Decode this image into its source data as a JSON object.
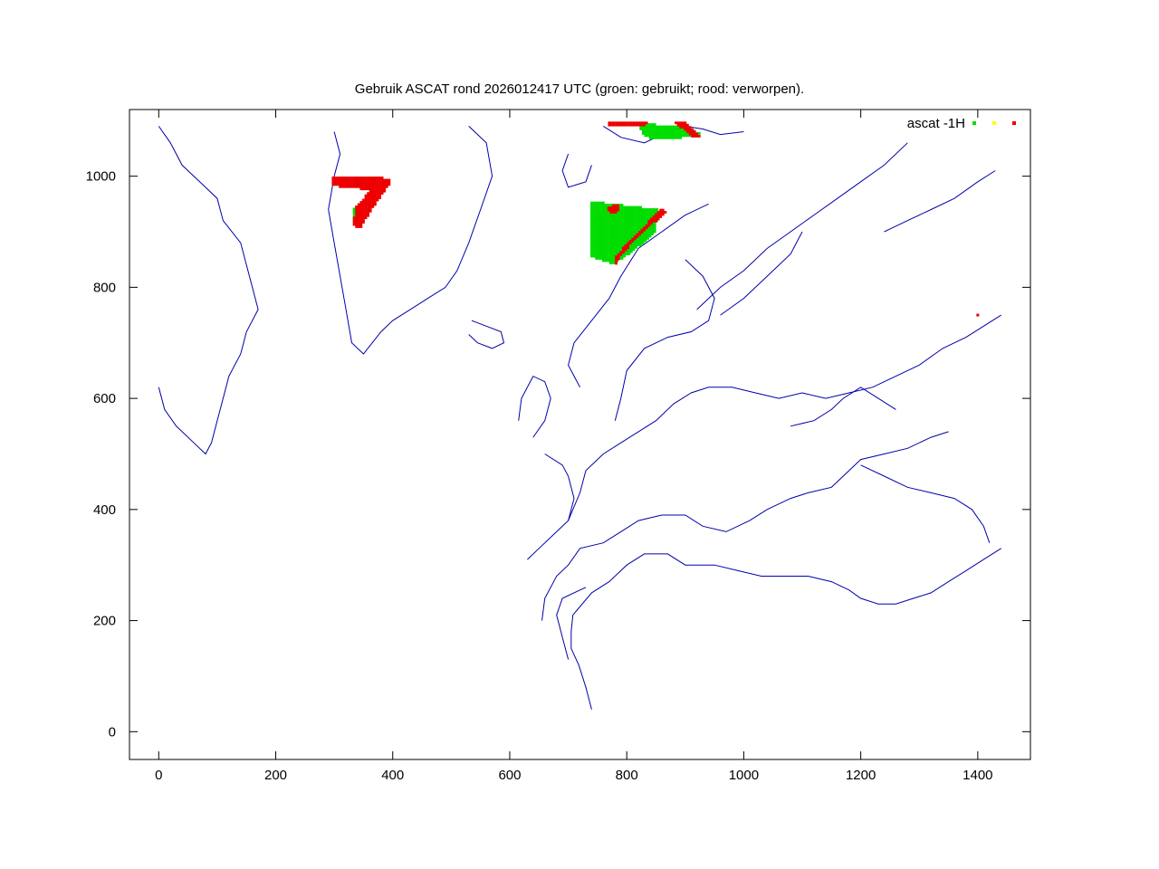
{
  "chart_data": {
    "type": "scatter",
    "title": "Gebruik ASCAT rond 2026012417 UTC (groen: gebruikt; rood: verworpen).",
    "xlabel": "",
    "ylabel": "",
    "xlim": [
      -50,
      1490
    ],
    "ylim": [
      -50,
      1120
    ],
    "x_ticks": [
      0,
      200,
      400,
      600,
      800,
      1000,
      1200,
      1400
    ],
    "y_ticks": [
      0,
      200,
      400,
      600,
      800,
      1000
    ],
    "x_tick_labels": [
      "0",
      "200",
      "400",
      "600",
      "800",
      "1000",
      "1200",
      "1400"
    ],
    "y_tick_labels": [
      "0",
      "200",
      "400",
      "600",
      "800",
      "1000"
    ],
    "grid": false,
    "legend": {
      "position": "top-right",
      "label": "ascat -1H"
    },
    "colors": {
      "coastline": "#0000aa",
      "used": "#00dd00",
      "flagged": "#ffff00",
      "rejected": "#ee0000",
      "axis": "#000000"
    },
    "series": [
      {
        "role": "coastline",
        "polylines": [
          [
            [
              740,
              40
            ],
            [
              730,
              80
            ],
            [
              718,
              120
            ],
            [
              705,
              150
            ],
            [
              705,
              180
            ],
            [
              708,
              210
            ],
            [
              740,
              250
            ],
            [
              770,
              270
            ],
            [
              800,
              300
            ],
            [
              830,
              320
            ],
            [
              870,
              320
            ],
            [
              900,
              300
            ],
            [
              950,
              300
            ],
            [
              990,
              290
            ],
            [
              1030,
              280
            ],
            [
              1080,
              280
            ],
            [
              1110,
              280
            ],
            [
              1150,
              270
            ],
            [
              1180,
              255
            ],
            [
              1200,
              240
            ],
            [
              1230,
              230
            ],
            [
              1260,
              230
            ],
            [
              1290,
              240
            ],
            [
              1320,
              250
            ],
            [
              1350,
              270
            ],
            [
              1380,
              290
            ],
            [
              1410,
              310
            ],
            [
              1440,
              330
            ]
          ],
          [
            [
              700,
              130
            ],
            [
              690,
              170
            ],
            [
              680,
              210
            ],
            [
              690,
              240
            ],
            [
              730,
              260
            ]
          ],
          [
            [
              655,
              200
            ],
            [
              660,
              240
            ],
            [
              680,
              280
            ],
            [
              700,
              300
            ],
            [
              720,
              330
            ],
            [
              760,
              340
            ],
            [
              790,
              360
            ],
            [
              820,
              380
            ],
            [
              860,
              390
            ],
            [
              900,
              390
            ],
            [
              930,
              370
            ],
            [
              970,
              360
            ],
            [
              1010,
              380
            ],
            [
              1040,
              400
            ],
            [
              1080,
              420
            ],
            [
              1110,
              430
            ],
            [
              1150,
              440
            ],
            [
              1180,
              470
            ],
            [
              1200,
              490
            ],
            [
              1240,
              500
            ],
            [
              1280,
              510
            ],
            [
              1320,
              530
            ],
            [
              1350,
              540
            ]
          ],
          [
            [
              700,
              380
            ],
            [
              720,
              430
            ],
            [
              730,
              470
            ],
            [
              760,
              500
            ],
            [
              790,
              520
            ],
            [
              820,
              540
            ],
            [
              850,
              560
            ],
            [
              880,
              590
            ],
            [
              910,
              610
            ],
            [
              940,
              620
            ],
            [
              980,
              620
            ],
            [
              1020,
              610
            ],
            [
              1060,
              600
            ],
            [
              1100,
              610
            ],
            [
              1140,
              600
            ],
            [
              1180,
              610
            ],
            [
              1220,
              620
            ],
            [
              1260,
              640
            ],
            [
              1300,
              660
            ],
            [
              1340,
              690
            ],
            [
              1380,
              710
            ],
            [
              1410,
              730
            ],
            [
              1440,
              750
            ]
          ],
          [
            [
              720,
              620
            ],
            [
              700,
              660
            ],
            [
              710,
              700
            ],
            [
              740,
              740
            ],
            [
              770,
              780
            ],
            [
              790,
              820
            ],
            [
              820,
              870
            ],
            [
              860,
              900
            ],
            [
              900,
              930
            ],
            [
              940,
              950
            ]
          ],
          [
            [
              780,
              560
            ],
            [
              790,
              600
            ],
            [
              800,
              650
            ],
            [
              830,
              690
            ],
            [
              870,
              710
            ],
            [
              910,
              720
            ],
            [
              940,
              740
            ],
            [
              950,
              780
            ],
            [
              930,
              820
            ],
            [
              900,
              850
            ]
          ],
          [
            [
              920,
              760
            ],
            [
              960,
              800
            ],
            [
              1000,
              830
            ],
            [
              1040,
              870
            ],
            [
              1080,
              900
            ],
            [
              1120,
              930
            ],
            [
              1160,
              960
            ],
            [
              1200,
              990
            ],
            [
              1240,
              1020
            ],
            [
              1280,
              1060
            ]
          ],
          [
            [
              300,
              1080
            ],
            [
              310,
              1040
            ],
            [
              300,
              1000
            ],
            [
              290,
              940
            ],
            [
              300,
              880
            ],
            [
              310,
              820
            ],
            [
              320,
              760
            ],
            [
              330,
              700
            ],
            [
              350,
              680
            ],
            [
              380,
              720
            ],
            [
              400,
              740
            ],
            [
              430,
              760
            ],
            [
              460,
              780
            ],
            [
              490,
              800
            ],
            [
              510,
              830
            ],
            [
              530,
              880
            ],
            [
              550,
              940
            ],
            [
              570,
              1000
            ],
            [
              560,
              1060
            ],
            [
              530,
              1090
            ]
          ],
          [
            [
              0,
              1090
            ],
            [
              20,
              1060
            ],
            [
              40,
              1020
            ],
            [
              70,
              990
            ],
            [
              100,
              960
            ],
            [
              110,
              920
            ],
            [
              140,
              880
            ],
            [
              150,
              840
            ],
            [
              160,
              800
            ],
            [
              170,
              760
            ],
            [
              150,
              720
            ],
            [
              140,
              680
            ],
            [
              120,
              640
            ],
            [
              110,
              600
            ],
            [
              100,
              560
            ],
            [
              90,
              520
            ],
            [
              80,
              500
            ],
            [
              60,
              520
            ],
            [
              30,
              550
            ],
            [
              10,
              580
            ],
            [
              0,
              620
            ]
          ],
          [
            [
              535,
              740
            ],
            [
              560,
              730
            ],
            [
              585,
              720
            ],
            [
              590,
              700
            ],
            [
              570,
              690
            ],
            [
              545,
              700
            ],
            [
              530,
              715
            ]
          ],
          [
            [
              640,
              530
            ],
            [
              660,
              560
            ],
            [
              670,
              600
            ],
            [
              660,
              630
            ],
            [
              640,
              640
            ],
            [
              620,
              600
            ],
            [
              615,
              560
            ]
          ],
          [
            [
              630,
              310
            ],
            [
              650,
              330
            ],
            [
              680,
              360
            ],
            [
              700,
              380
            ],
            [
              710,
              420
            ],
            [
              700,
              460
            ],
            [
              690,
              480
            ],
            [
              660,
              500
            ]
          ],
          [
            [
              1200,
              480
            ],
            [
              1240,
              460
            ],
            [
              1280,
              440
            ],
            [
              1320,
              430
            ],
            [
              1360,
              420
            ],
            [
              1390,
              400
            ],
            [
              1410,
              370
            ],
            [
              1420,
              340
            ]
          ],
          [
            [
              1080,
              550
            ],
            [
              1120,
              560
            ],
            [
              1150,
              580
            ],
            [
              1170,
              600
            ],
            [
              1200,
              620
            ],
            [
              1230,
              600
            ],
            [
              1260,
              580
            ]
          ],
          [
            [
              960,
              750
            ],
            [
              1000,
              780
            ],
            [
              1040,
              820
            ],
            [
              1080,
              860
            ],
            [
              1100,
              900
            ]
          ],
          [
            [
              760,
              1090
            ],
            [
              790,
              1070
            ],
            [
              830,
              1060
            ],
            [
              870,
              1080
            ],
            [
              900,
              1090
            ],
            [
              930,
              1085
            ],
            [
              960,
              1075
            ],
            [
              1000,
              1080
            ]
          ],
          [
            [
              1240,
              900
            ],
            [
              1280,
              920
            ],
            [
              1320,
              940
            ],
            [
              1360,
              960
            ],
            [
              1400,
              990
            ],
            [
              1430,
              1010
            ]
          ],
          [
            [
              700,
              1040
            ],
            [
              690,
              1010
            ],
            [
              700,
              980
            ],
            [
              730,
              990
            ],
            [
              740,
              1020
            ]
          ]
        ]
      },
      {
        "name": "ascat -1H",
        "status": "used",
        "color": "#00dd00",
        "region_polygon": [
          [
            740,
            955
          ],
          [
            855,
            940
          ],
          [
            850,
            900
          ],
          [
            830,
            880
          ],
          [
            805,
            860
          ],
          [
            790,
            850
          ],
          [
            780,
            840
          ],
          [
            740,
            855
          ]
        ]
      },
      {
        "name": "ascat -1H",
        "status": "used",
        "color": "#00dd00",
        "region_polygon": [
          [
            820,
            1095
          ],
          [
            900,
            1090
          ],
          [
            930,
            1075
          ],
          [
            870,
            1065
          ],
          [
            830,
            1070
          ]
        ]
      },
      {
        "name": "ascat -1H",
        "status": "used",
        "color": "#00dd00",
        "region_polygon": [
          [
            330,
            940
          ],
          [
            350,
            955
          ],
          [
            345,
            920
          ],
          [
            335,
            905
          ]
        ]
      },
      {
        "name": "ascat -1H",
        "status": "rejected",
        "color": "#ee0000",
        "region_polygon": [
          [
            298,
            1000
          ],
          [
            380,
            998
          ],
          [
            400,
            992
          ],
          [
            380,
            962
          ],
          [
            360,
            932
          ],
          [
            345,
            905
          ],
          [
            330,
            912
          ],
          [
            338,
            945
          ],
          [
            362,
            975
          ],
          [
            298,
            982
          ]
        ]
      },
      {
        "name": "ascat -1H",
        "status": "rejected",
        "color": "#ee0000",
        "region_polygon": [
          [
            860,
            945
          ],
          [
            870,
            935
          ],
          [
            840,
            910
          ],
          [
            810,
            880
          ],
          [
            790,
            855
          ],
          [
            780,
            835
          ],
          [
            778,
            850
          ],
          [
            800,
            880
          ],
          [
            830,
            910
          ]
        ]
      },
      {
        "name": "ascat -1H",
        "status": "rejected",
        "color": "#ee0000",
        "region_polygon": [
          [
            770,
            1100
          ],
          [
            840,
            1098
          ],
          [
            830,
            1088
          ],
          [
            790,
            1090
          ],
          [
            770,
            1092
          ]
        ]
      },
      {
        "name": "ascat -1H",
        "status": "rejected",
        "color": "#ee0000",
        "region_polygon": [
          [
            880,
            1100
          ],
          [
            900,
            1100
          ],
          [
            930,
            1070
          ],
          [
            915,
            1068
          ],
          [
            895,
            1085
          ]
        ]
      },
      {
        "name": "ascat -1H",
        "status": "rejected",
        "color": "#ee0000",
        "region_polygon": [
          [
            765,
            945
          ],
          [
            790,
            950
          ],
          [
            785,
            935
          ],
          [
            770,
            935
          ]
        ]
      },
      {
        "name": "ascat -1H",
        "status": "rejected",
        "color": "#ee0000",
        "points": [
          [
            1400,
            750
          ]
        ]
      }
    ]
  }
}
